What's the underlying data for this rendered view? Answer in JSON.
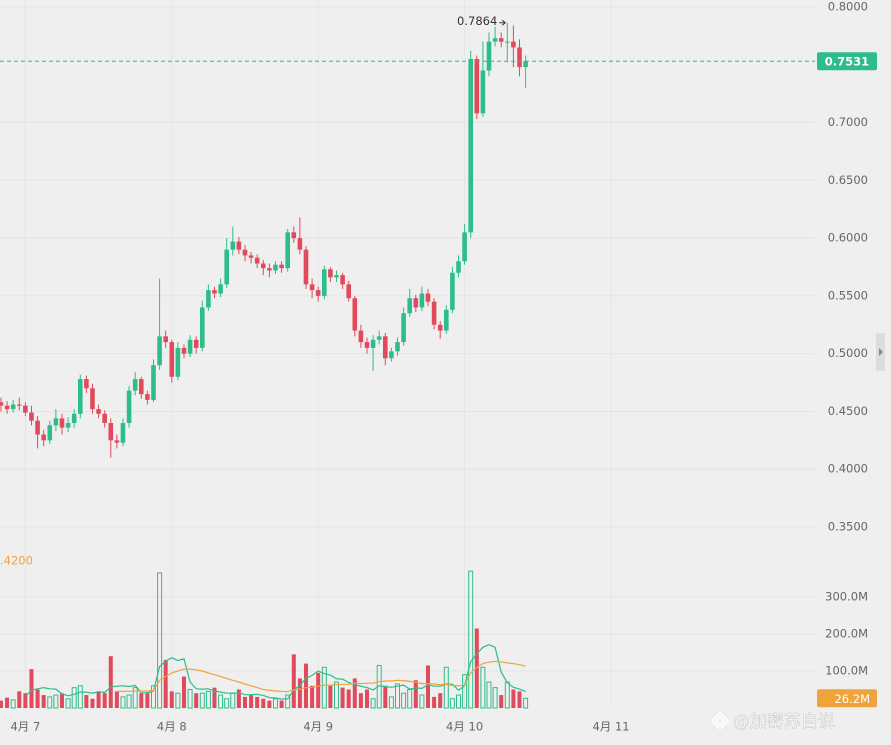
{
  "chart_data": [
    {
      "type": "candlestick",
      "up_color": "#2dbd8a",
      "down_color": "#e04a5c",
      "xlim": [
        -0.16,
        133.44
      ],
      "xticks": [
        {
          "value": 4,
          "label": "4月 7"
        },
        {
          "value": 28,
          "label": "4月 8"
        },
        {
          "value": 52,
          "label": "4月 9"
        },
        {
          "value": 76,
          "label": "4月 10"
        },
        {
          "value": 100,
          "label": "4月 11"
        }
      ],
      "ylim": [
        0.35,
        0.8
      ],
      "yticks": [
        {
          "value": 0.8,
          "label": "0.8000"
        },
        {
          "value": 0.7,
          "label": "0.7000"
        },
        {
          "value": 0.65,
          "label": "0.6500"
        },
        {
          "value": 0.6,
          "label": "0.6000"
        },
        {
          "value": 0.55,
          "label": "0.5500"
        },
        {
          "value": 0.5,
          "label": "0.5000"
        },
        {
          "value": 0.45,
          "label": "0.4500"
        },
        {
          "value": 0.4,
          "label": "0.4000"
        },
        {
          "value": 0.35,
          "label": "0.3500"
        }
      ],
      "grid": true,
      "open": [
        0.458,
        0.455,
        0.452,
        0.456,
        0.455,
        0.449,
        0.442,
        0.43,
        0.425,
        0.438,
        0.444,
        0.436,
        0.44,
        0.448,
        0.478,
        0.47,
        0.452,
        0.448,
        0.44,
        0.425,
        0.423,
        0.44,
        0.468,
        0.478,
        0.465,
        0.46,
        0.49,
        0.515,
        0.51,
        0.48,
        0.505,
        0.5,
        0.512,
        0.505,
        0.54,
        0.555,
        0.552,
        0.56,
        0.59,
        0.597,
        0.59,
        0.585,
        0.583,
        0.578,
        0.574,
        0.572,
        0.577,
        0.574,
        0.605,
        0.6,
        0.59,
        0.56,
        0.555,
        0.55,
        0.573,
        0.566,
        0.568,
        0.56,
        0.548,
        0.52,
        0.51,
        0.505,
        0.512,
        0.515,
        0.496,
        0.502,
        0.51,
        0.535,
        0.548,
        0.54,
        0.552,
        0.545,
        0.525,
        0.52,
        0.538,
        0.57,
        0.58,
        0.605,
        0.755,
        0.708,
        0.745,
        0.77,
        0.773,
        0.77,
        0.77,
        0.765,
        0.748
      ],
      "high": [
        0.462,
        0.459,
        0.46,
        0.462,
        0.458,
        0.455,
        0.446,
        0.434,
        0.442,
        0.452,
        0.448,
        0.445,
        0.452,
        0.482,
        0.481,
        0.474,
        0.456,
        0.451,
        0.444,
        0.43,
        0.444,
        0.472,
        0.484,
        0.48,
        0.468,
        0.495,
        0.565,
        0.52,
        0.512,
        0.51,
        0.508,
        0.516,
        0.515,
        0.546,
        0.56,
        0.558,
        0.565,
        0.6,
        0.61,
        0.601,
        0.594,
        0.588,
        0.586,
        0.581,
        0.578,
        0.58,
        0.58,
        0.608,
        0.61,
        0.618,
        0.593,
        0.565,
        0.558,
        0.576,
        0.575,
        0.572,
        0.57,
        0.563,
        0.55,
        0.525,
        0.514,
        0.516,
        0.52,
        0.518,
        0.505,
        0.514,
        0.54,
        0.556,
        0.551,
        0.558,
        0.556,
        0.548,
        0.528,
        0.542,
        0.575,
        0.585,
        0.612,
        0.762,
        0.758,
        0.77,
        0.778,
        0.783,
        0.778,
        0.7864,
        0.784,
        0.772,
        0.758
      ],
      "low": [
        0.45,
        0.448,
        0.449,
        0.451,
        0.446,
        0.438,
        0.418,
        0.42,
        0.422,
        0.433,
        0.43,
        0.432,
        0.436,
        0.444,
        0.466,
        0.448,
        0.444,
        0.436,
        0.41,
        0.418,
        0.42,
        0.436,
        0.464,
        0.461,
        0.456,
        0.458,
        0.486,
        0.505,
        0.475,
        0.477,
        0.496,
        0.497,
        0.5,
        0.502,
        0.537,
        0.548,
        0.549,
        0.557,
        0.585,
        0.586,
        0.58,
        0.578,
        0.574,
        0.568,
        0.566,
        0.569,
        0.57,
        0.571,
        0.596,
        0.586,
        0.556,
        0.548,
        0.545,
        0.547,
        0.562,
        0.562,
        0.556,
        0.545,
        0.515,
        0.505,
        0.5,
        0.485,
        0.508,
        0.49,
        0.493,
        0.498,
        0.507,
        0.532,
        0.536,
        0.537,
        0.541,
        0.521,
        0.513,
        0.517,
        0.535,
        0.566,
        0.577,
        0.6,
        0.703,
        0.705,
        0.74,
        0.766,
        0.765,
        0.752,
        0.748,
        0.74,
        0.73
      ],
      "close": [
        0.455,
        0.452,
        0.456,
        0.455,
        0.449,
        0.442,
        0.43,
        0.425,
        0.438,
        0.444,
        0.436,
        0.44,
        0.448,
        0.478,
        0.47,
        0.452,
        0.448,
        0.44,
        0.425,
        0.423,
        0.44,
        0.468,
        0.478,
        0.465,
        0.46,
        0.49,
        0.515,
        0.51,
        0.48,
        0.505,
        0.5,
        0.512,
        0.505,
        0.54,
        0.555,
        0.552,
        0.56,
        0.59,
        0.597,
        0.59,
        0.585,
        0.583,
        0.578,
        0.574,
        0.572,
        0.577,
        0.574,
        0.605,
        0.6,
        0.59,
        0.56,
        0.555,
        0.55,
        0.573,
        0.566,
        0.568,
        0.56,
        0.548,
        0.52,
        0.51,
        0.505,
        0.512,
        0.515,
        0.496,
        0.502,
        0.51,
        0.535,
        0.548,
        0.54,
        0.552,
        0.545,
        0.525,
        0.52,
        0.538,
        0.57,
        0.58,
        0.605,
        0.755,
        0.708,
        0.745,
        0.77,
        0.773,
        0.77,
        0.77,
        0.765,
        0.748,
        0.7531
      ],
      "watermark": "@加密苏自说"
    },
    {
      "type": "bar",
      "indicator_label": ".4200",
      "ylim": [
        0,
        400000000.0
      ],
      "yticks": [
        {
          "value": 100000000.0,
          "label": "100.0M"
        },
        {
          "value": 200000000.0,
          "label": "200.0M"
        },
        {
          "value": 300000000.0,
          "label": "300.0M"
        }
      ],
      "values": [
        20000000.0,
        28000000.0,
        22000000.0,
        45000000.0,
        40000000.0,
        105000000.0,
        50000000.0,
        35000000.0,
        30000000.0,
        35000000.0,
        40000000.0,
        25000000.0,
        55000000.0,
        60000000.0,
        35000000.0,
        25000000.0,
        45000000.0,
        40000000.0,
        140000000.0,
        45000000.0,
        30000000.0,
        35000000.0,
        55000000.0,
        40000000.0,
        40000000.0,
        60000000.0,
        365000000.0,
        130000000.0,
        45000000.0,
        40000000.0,
        85000000.0,
        50000000.0,
        40000000.0,
        40000000.0,
        45000000.0,
        55000000.0,
        35000000.0,
        25000000.0,
        40000000.0,
        50000000.0,
        30000000.0,
        35000000.0,
        30000000.0,
        25000000.0,
        20000000.0,
        25000000.0,
        20000000.0,
        35000000.0,
        145000000.0,
        80000000.0,
        120000000.0,
        60000000.0,
        95000000.0,
        110000000.0,
        60000000.0,
        70000000.0,
        55000000.0,
        50000000.0,
        80000000.0,
        40000000.0,
        50000000.0,
        25000000.0,
        115000000.0,
        60000000.0,
        30000000.0,
        65000000.0,
        40000000.0,
        50000000.0,
        75000000.0,
        35000000.0,
        115000000.0,
        30000000.0,
        40000000.0,
        110000000.0,
        25000000.0,
        35000000.0,
        90000000.0,
        370000000.0,
        215000000.0,
        110000000.0,
        70000000.0,
        55000000.0,
        35000000.0,
        70000000.0,
        50000000.0,
        45000000.0,
        26200000.0
      ],
      "last_label": "26.2M",
      "last_color": "#f0a33c",
      "series": [
        {
          "color": "#2dbd8a",
          "values": [
            null,
            null,
            null,
            null,
            31000000.0,
            48000000.0,
            52000000.0,
            55000000.0,
            52000000.0,
            51000000.0,
            38000000.0,
            33000000.0,
            37000000.0,
            43000000.0,
            43000000.0,
            40000000.0,
            44000000.0,
            42000000.0,
            57000000.0,
            59000000.0,
            60000000.0,
            58000000.0,
            61000000.0,
            41000000.0,
            41000000.0,
            46000000.0,
            112000000.0,
            127000000.0,
            136000000.0,
            128000000.0,
            133000000.0,
            70000000.0,
            52000000.0,
            51000000.0,
            52000000.0,
            46000000.0,
            43000000.0,
            40000000.0,
            40000000.0,
            41000000.0,
            36000000.0,
            36000000.0,
            37000000.0,
            34000000.0,
            28000000.0,
            27000000.0,
            24000000.0,
            25000000.0,
            49000000.0,
            61000000.0,
            80000000.0,
            88000000.0,
            100000000.0,
            93000000.0,
            89000000.0,
            79000000.0,
            78000000.0,
            69000000.0,
            63000000.0,
            59000000.0,
            55000000.0,
            49000000.0,
            60000000.0,
            58000000.0,
            56000000.0,
            59000000.0,
            62000000.0,
            51000000.0,
            54000000.0,
            53000000.0,
            63000000.0,
            59000000.0,
            59000000.0,
            65000000.0,
            64000000.0,
            48000000.0,
            60000000.0,
            125000000.0,
            147000000.0,
            164000000.0,
            171000000.0,
            164000000.0,
            97000000.0,
            68000000.0,
            56000000.0,
            51000000.0,
            45000000.0
          ]
        },
        {
          "color": "#f0a33c",
          "values": [
            null,
            null,
            null,
            null,
            null,
            null,
            null,
            null,
            null,
            null,
            null,
            null,
            null,
            null,
            null,
            null,
            null,
            null,
            null,
            45000000.0,
            45000000.0,
            45000000.0,
            46000000.0,
            46000000.0,
            46000000.0,
            47000000.0,
            75000000.0,
            85000000.0,
            95000000.0,
            100000000.0,
            105000000.0,
            105000000.0,
            103000000.0,
            100000000.0,
            95000000.0,
            90000000.0,
            85000000.0,
            80000000.0,
            75000000.0,
            70000000.0,
            65000000.0,
            60000000.0,
            55000000.0,
            50000000.0,
            48000000.0,
            46000000.0,
            45000000.0,
            44000000.0,
            49000000.0,
            51000000.0,
            55000000.0,
            56000000.0,
            59000000.0,
            62000000.0,
            62000000.0,
            63000000.0,
            64000000.0,
            64000000.0,
            67000000.0,
            66000000.0,
            67000000.0,
            67000000.0,
            71000000.0,
            73000000.0,
            73000000.0,
            75000000.0,
            74000000.0,
            72000000.0,
            70000000.0,
            66000000.0,
            66000000.0,
            65000000.0,
            63000000.0,
            64000000.0,
            61000000.0,
            60000000.0,
            62000000.0,
            95000000.0,
            110000000.0,
            120000000.0,
            124000000.0,
            126000000.0,
            125000000.0,
            122000000.0,
            120000000.0,
            117000000.0,
            113000000.0
          ]
        }
      ]
    }
  ]
}
